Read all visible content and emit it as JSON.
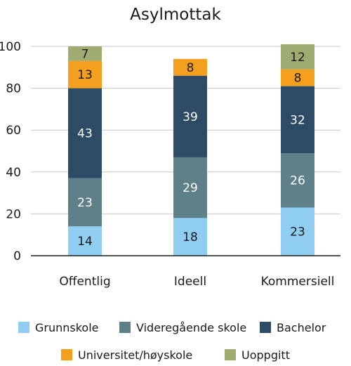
{
  "chart_data": {
    "type": "bar",
    "stacked": true,
    "title": "Asylmottak",
    "xlabel": "",
    "ylabel": "",
    "ylim": [
      0,
      100
    ],
    "yticks": [
      0,
      20,
      40,
      60,
      80,
      100
    ],
    "grid": true,
    "legend": "bottom",
    "categories": [
      "Offentlig",
      "Ideell",
      "Kommersiell"
    ],
    "series": [
      {
        "name": "Grunnskole",
        "color": "#8fcdf1",
        "label_color": "#1a1a1a",
        "values": [
          14,
          18,
          23
        ]
      },
      {
        "name": "Videregående skole",
        "color": "#5e8189",
        "label_color": "#ffffff",
        "values": [
          23,
          29,
          26
        ]
      },
      {
        "name": "Bachelor",
        "color": "#2e4b66",
        "label_color": "#ffffff",
        "values": [
          43,
          39,
          32
        ]
      },
      {
        "name": "Universitet/høyskole",
        "color": "#f4a01e",
        "label_color": "#1a1a1a",
        "values": [
          13,
          8,
          8
        ]
      },
      {
        "name": "Uoppgitt",
        "color": "#9eac72",
        "label_color": "#1a1a1a",
        "values": [
          7,
          null,
          12
        ]
      }
    ]
  }
}
